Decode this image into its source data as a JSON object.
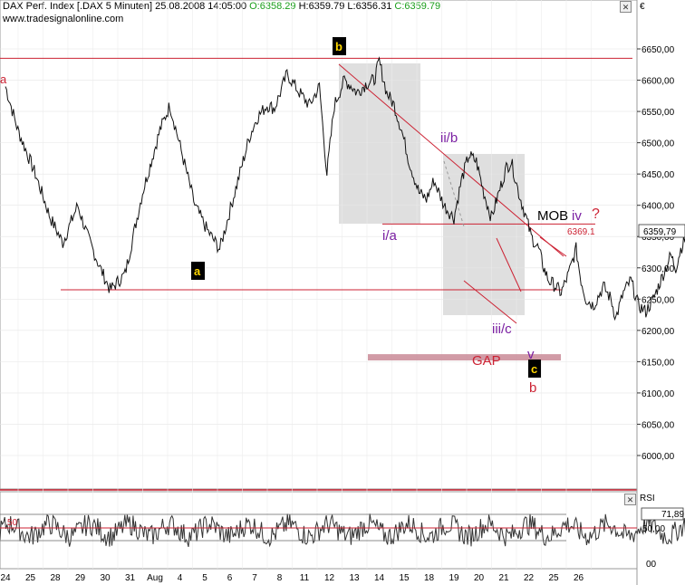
{
  "header": {
    "instrument": "DAX Perf. Index [.DAX  5 Minuten] 25.08.2008 14:05:00",
    "open": "O:6358.29",
    "high": "H:6359.79",
    "low": "L:6356.31",
    "close": "C:6359.79",
    "watermark": "www.tradesignalonline.com",
    "currency": "€"
  },
  "chart_data": {
    "type": "line",
    "price_axis": {
      "range": [
        5950,
        6700
      ],
      "ticks": [
        6000,
        6050,
        6100,
        6150,
        6200,
        6250,
        6300,
        6350,
        6400,
        6450,
        6500,
        6550,
        6600,
        6650
      ],
      "labels": [
        "6000,00",
        "6050,00",
        "6100,00",
        "6150,00",
        "6200,00",
        "6250,00",
        "6300,00",
        "6350,00",
        "6400,00",
        "6450,00",
        "6500,00",
        "6550,00",
        "6600,00",
        "6650,00"
      ],
      "last_label": "6359,79",
      "last_value": 6359.79
    },
    "date_axis": {
      "labels": [
        "24",
        "25",
        "28",
        "29",
        "30",
        "31",
        "Aug",
        "4",
        "5",
        "6",
        "7",
        "8",
        "11",
        "12",
        "13",
        "14",
        "15",
        "18",
        "19",
        "20",
        "21",
        "22",
        "25",
        "26"
      ]
    },
    "series": [
      {
        "x": [
          0,
          0.5,
          1.2,
          1.8,
          2.3,
          2.9,
          3.3,
          3.8,
          4.2,
          4.8,
          5.5,
          6.2,
          6.6,
          7.1,
          7.6,
          8.1,
          8.6,
          9.2,
          9.8,
          10.1,
          10.5,
          10.8,
          11.3,
          11.8,
          12.2,
          12.6,
          12.9,
          13.2,
          13.6,
          13.9,
          14.1,
          14.5,
          14.8,
          15.0,
          15.3,
          15.6,
          15.9,
          16.2,
          16.6,
          16.9,
          17.2,
          17.6,
          18.0,
          18.3,
          18.6,
          18.9,
          19.2,
          19.5,
          19.8,
          20.1,
          20.3,
          20.6,
          20.9,
          21.1,
          21.4,
          21.6,
          21.8,
          22.1,
          22.3,
          22.6,
          22.9,
          23.1,
          23.3,
          23.6,
          24.0,
          24.3,
          24.5,
          24.8,
          25.1,
          25.4,
          25.7,
          26.0,
          26.2,
          26.4,
          26.7,
          26.9,
          27.1,
          27.3,
          27.6,
          27.9,
          28.2,
          28.5,
          28.8,
          29.0,
          29.2,
          29.5,
          29.7,
          29.9,
          30.2,
          30.5,
          30.8,
          31.1,
          31.3,
          31.6,
          31.9,
          32.2,
          32.5
        ],
        "y": [
          6590,
          6520,
          6450,
          6380,
          6340,
          6400,
          6350,
          6300,
          6265,
          6290,
          6420,
          6520,
          6560,
          6480,
          6400,
          6360,
          6330,
          6420,
          6510,
          6540,
          6560,
          6555,
          6610,
          6580,
          6560,
          6590,
          6450,
          6560,
          6600,
          6590,
          6580,
          6595,
          6600,
          6630,
          6580,
          6560,
          6520,
          6470,
          6420,
          6410,
          6440,
          6400,
          6380,
          6440,
          6480,
          6470,
          6420,
          6380,
          6420,
          6460,
          6470,
          6420,
          6380,
          6350,
          6330,
          6300,
          6280,
          6270,
          6260,
          6290,
          6330,
          6280,
          6250,
          6240,
          6270,
          6250,
          6220,
          6260,
          6280,
          6240,
          6230,
          6250,
          6270,
          6290,
          6320,
          6300,
          6330,
          6350,
          6330,
          6310,
          6330,
          6340,
          6350,
          6340,
          6320,
          6330,
          6340,
          6350,
          6360,
          6350,
          6330,
          6340,
          6355,
          6345,
          6350,
          6358,
          6359.79
        ]
      }
    ],
    "annotations": {
      "wave_labels": [
        "b",
        "a",
        "ii/b",
        "i/a",
        "iii/c",
        "MOB",
        "iv",
        "?",
        "6369.1",
        "v",
        "c",
        "b",
        "GAP",
        "a"
      ],
      "horizontal_lines": [
        6635,
        6265,
        6370
      ],
      "gap_zone": [
        6152,
        6162
      ]
    },
    "rsi": {
      "label": "RSI",
      "value_label": "71,89",
      "value": 71.89,
      "ticks": [
        "50,00",
        "00"
      ],
      "level_label": "50",
      "level": 50,
      "upper": 70,
      "lower": 30
    },
    "grid": true
  }
}
